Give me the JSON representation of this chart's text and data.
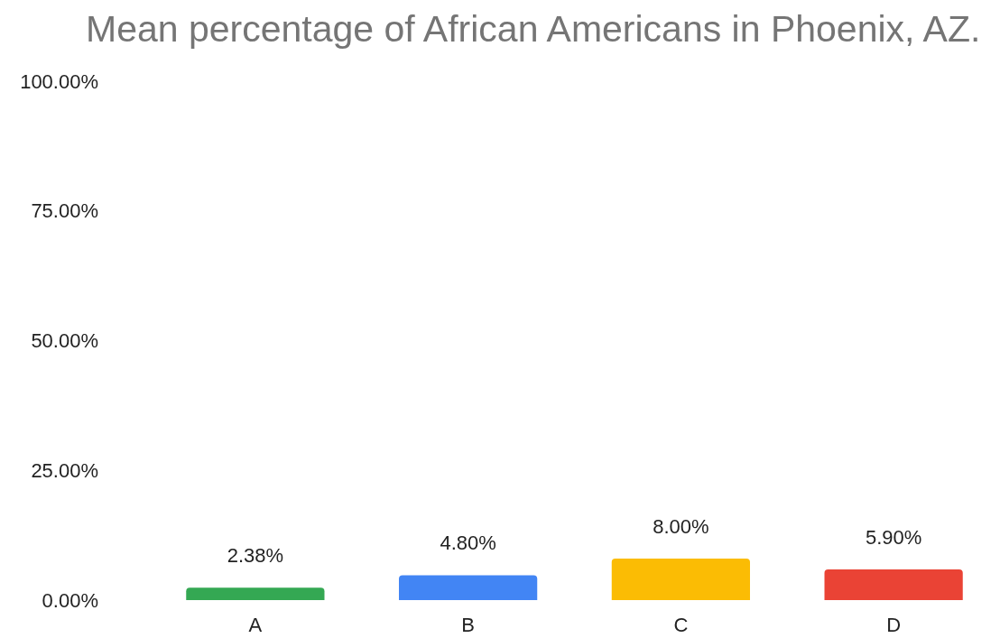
{
  "chart_data": {
    "type": "bar",
    "title": "Mean percentage of African Americans in Phoenix, AZ.",
    "categories": [
      "A",
      "B",
      "C",
      "D"
    ],
    "values": [
      2.38,
      4.8,
      8.0,
      5.9
    ],
    "colors": [
      "#34a853",
      "#4285f4",
      "#fbbc04",
      "#ea4335"
    ],
    "value_labels": [
      "2.38%",
      "4.80%",
      "8.00%",
      "5.90%"
    ],
    "ylim": [
      0,
      100
    ],
    "yticks": [
      {
        "value": 0,
        "label": "0.00%"
      },
      {
        "value": 25,
        "label": "25.00%"
      },
      {
        "value": 50,
        "label": "50.00%"
      },
      {
        "value": 75,
        "label": "75.00%"
      },
      {
        "value": 100,
        "label": "100.00%"
      }
    ],
    "grid": false
  }
}
